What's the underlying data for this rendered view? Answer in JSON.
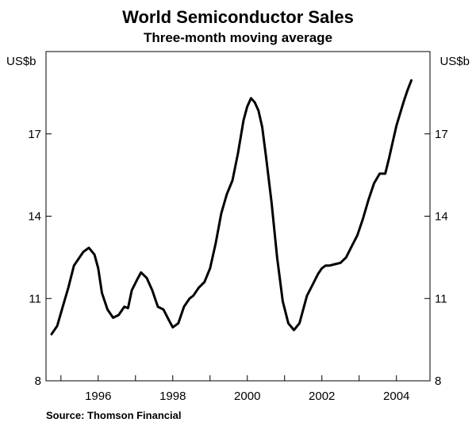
{
  "chart_data": {
    "type": "line",
    "title": "World Semiconductor Sales",
    "subtitle": "Three-month moving average",
    "ylabel_left": "US$b",
    "ylabel_right": "US$b",
    "xlabel": "",
    "source": "Source: Thomson Financial",
    "ylim": [
      8,
      20
    ],
    "y_ticks": [
      8,
      11,
      14,
      17
    ],
    "xlim": [
      1994.6,
      2004.9
    ],
    "x_ticks": [
      1996,
      1998,
      2000,
      2002,
      2004
    ],
    "series": [
      {
        "name": "World semiconductor sales",
        "color": "#000000",
        "x": [
          1994.75,
          1994.9,
          1995.05,
          1995.2,
          1995.35,
          1995.5,
          1995.6,
          1995.75,
          1995.9,
          1996.0,
          1996.1,
          1996.25,
          1996.4,
          1996.55,
          1996.7,
          1996.8,
          1996.9,
          1997.05,
          1997.15,
          1997.3,
          1997.45,
          1997.6,
          1997.75,
          1997.9,
          1998.0,
          1998.15,
          1998.3,
          1998.45,
          1998.55,
          1998.7,
          1998.85,
          1999.0,
          1999.15,
          1999.3,
          1999.45,
          1999.6,
          1999.75,
          1999.9,
          2000.0,
          2000.1,
          2000.2,
          2000.3,
          2000.4,
          2000.5,
          2000.65,
          2000.8,
          2000.95,
          2001.1,
          2001.25,
          2001.4,
          2001.5,
          2001.6,
          2001.75,
          2001.9,
          2002.0,
          2002.1,
          2002.2,
          2002.35,
          2002.5,
          2002.65,
          2002.8,
          2002.95,
          2003.1,
          2003.25,
          2003.4,
          2003.55,
          2003.7,
          2003.8,
          2003.9,
          2004.0,
          2004.1,
          2004.2,
          2004.3,
          2004.4
        ],
        "values": [
          9.7,
          10.0,
          10.7,
          11.4,
          12.2,
          12.5,
          12.7,
          12.85,
          12.6,
          12.1,
          11.2,
          10.6,
          10.3,
          10.4,
          10.7,
          10.65,
          11.3,
          11.7,
          11.95,
          11.75,
          11.3,
          10.7,
          10.6,
          10.2,
          9.95,
          10.1,
          10.7,
          11.0,
          11.1,
          11.4,
          11.6,
          12.1,
          13.0,
          14.1,
          14.8,
          15.3,
          16.3,
          17.5,
          18.0,
          18.3,
          18.15,
          17.85,
          17.25,
          16.2,
          14.5,
          12.5,
          10.9,
          10.1,
          9.85,
          10.1,
          10.6,
          11.1,
          11.5,
          11.9,
          12.1,
          12.2,
          12.2,
          12.25,
          12.3,
          12.5,
          12.9,
          13.3,
          13.9,
          14.6,
          15.2,
          15.55,
          15.55,
          16.1,
          16.7,
          17.3,
          17.75,
          18.2,
          18.6,
          18.95
        ]
      }
    ]
  }
}
